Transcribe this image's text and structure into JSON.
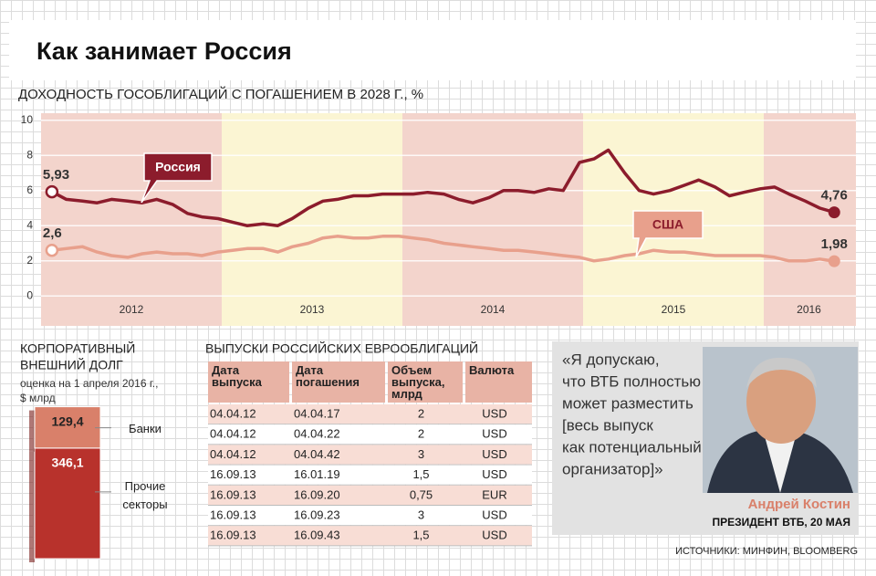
{
  "title": "Как занимает Россия",
  "chart_data": [
    {
      "type": "line",
      "title": "ДОХОДНОСТЬ ГОСОБЛИГАЦИЙ С ПОГАШЕНИЕМ В 2028 Г., %",
      "x": [
        2012.06,
        2012.14,
        2012.23,
        2012.31,
        2012.39,
        2012.48,
        2012.56,
        2012.64,
        2012.73,
        2012.81,
        2012.89,
        2012.98,
        2013.06,
        2013.14,
        2013.23,
        2013.31,
        2013.39,
        2013.48,
        2013.56,
        2013.64,
        2013.73,
        2013.81,
        2013.89,
        2013.98,
        2014.06,
        2014.14,
        2014.23,
        2014.31,
        2014.39,
        2014.48,
        2014.56,
        2014.64,
        2014.73,
        2014.81,
        2014.89,
        2014.98,
        2015.06,
        2015.14,
        2015.23,
        2015.31,
        2015.39,
        2015.48,
        2015.56,
        2015.64,
        2015.73,
        2015.81,
        2015.89,
        2015.98,
        2016.06,
        2016.14,
        2016.23,
        2016.31,
        2016.39
      ],
      "series": [
        {
          "name": "Россия",
          "color": "#8c1c2c",
          "values": [
            5.93,
            5.5,
            5.4,
            5.3,
            5.5,
            5.4,
            5.3,
            5.5,
            5.2,
            4.7,
            4.5,
            4.4,
            4.2,
            4.0,
            4.1,
            4.0,
            4.4,
            5.0,
            5.4,
            5.5,
            5.7,
            5.7,
            5.8,
            5.8,
            5.8,
            5.9,
            5.8,
            5.5,
            5.3,
            5.6,
            6.0,
            6.0,
            5.9,
            6.1,
            6.0,
            7.6,
            7.8,
            8.3,
            7.0,
            6.0,
            5.8,
            6.0,
            6.3,
            6.6,
            6.2,
            5.7,
            5.9,
            6.1,
            6.2,
            5.8,
            5.4,
            5.0,
            4.76
          ],
          "value_labels": [
            "5,93",
            null,
            null,
            null,
            null,
            null,
            null,
            null,
            null,
            null,
            null,
            null,
            null,
            null,
            null,
            null,
            null,
            null,
            null,
            null,
            null,
            null,
            null,
            null,
            null,
            null,
            null,
            null,
            null,
            null,
            null,
            null,
            null,
            null,
            null,
            null,
            null,
            null,
            null,
            null,
            null,
            null,
            null,
            null,
            null,
            null,
            null,
            null,
            null,
            null,
            null,
            null,
            "4,76"
          ]
        },
        {
          "name": "США",
          "color": "#e8a08c",
          "values": [
            2.6,
            2.7,
            2.8,
            2.5,
            2.3,
            2.2,
            2.4,
            2.5,
            2.4,
            2.4,
            2.3,
            2.5,
            2.6,
            2.7,
            2.7,
            2.5,
            2.8,
            3.0,
            3.3,
            3.4,
            3.3,
            3.3,
            3.4,
            3.4,
            3.3,
            3.2,
            3.0,
            2.9,
            2.8,
            2.7,
            2.6,
            2.6,
            2.5,
            2.4,
            2.3,
            2.2,
            2.0,
            2.1,
            2.3,
            2.4,
            2.6,
            2.5,
            2.5,
            2.4,
            2.3,
            2.3,
            2.3,
            2.3,
            2.2,
            2.0,
            2.0,
            2.1,
            1.98
          ],
          "value_labels": [
            "2,6",
            null,
            null,
            null,
            null,
            null,
            null,
            null,
            null,
            null,
            null,
            null,
            null,
            null,
            null,
            null,
            null,
            null,
            null,
            null,
            null,
            null,
            null,
            null,
            null,
            null,
            null,
            null,
            null,
            null,
            null,
            null,
            null,
            null,
            null,
            null,
            null,
            null,
            null,
            null,
            null,
            null,
            null,
            null,
            null,
            null,
            null,
            null,
            null,
            null,
            null,
            null,
            "1,98"
          ]
        }
      ],
      "xlim": [
        2012,
        2016.51
      ],
      "xticks": [
        {
          "value": 2012.5,
          "label": "2012"
        },
        {
          "value": 2013.5,
          "label": "2013"
        },
        {
          "value": 2014.5,
          "label": "2014"
        },
        {
          "value": 2015.5,
          "label": "2015"
        },
        {
          "value": 2016.25,
          "label": "2016"
        }
      ],
      "ylim": [
        -1.7,
        10.4
      ],
      "yticks": [
        0,
        2,
        4,
        6,
        8,
        10
      ],
      "grid": true
    },
    {
      "type": "stacked-bar",
      "title": [
        "КОРПОРАТИВНЫЙ",
        "ВНЕШНИЙ ДОЛГ"
      ],
      "subtitle": [
        "оценка на 1 апреля 2016 г.,",
        "$ млрд"
      ],
      "series": [
        {
          "name": "Прочие секторы",
          "color": "#b8322c",
          "values": [
            346.1
          ],
          "value_labels": [
            "346,1"
          ]
        },
        {
          "name": "Банки",
          "color": "#d9806a",
          "values": [
            129.4
          ],
          "value_labels": [
            "129,4"
          ]
        }
      ]
    }
  ],
  "table": {
    "title": "ВЫПУСКИ РОССИЙСКИХ ЕВРООБЛИГАЦИЙ",
    "header": [
      "Дата выпуска",
      "Дата погашения",
      "Объем выпуска, млрд",
      "Валюта"
    ],
    "rows": [
      [
        "04.04.12",
        "04.04.17",
        "2",
        "USD"
      ],
      [
        "04.04.12",
        "04.04.22",
        "2",
        "USD"
      ],
      [
        "04.04.12",
        "04.04.42",
        "3",
        "USD"
      ],
      [
        "16.09.13",
        "16.01.19",
        "1,5",
        "USD"
      ],
      [
        "16.09.13",
        "16.09.20",
        "0,75",
        "EUR"
      ],
      [
        "16.09.13",
        "16.09.23",
        "3",
        "USD"
      ],
      [
        "16.09.13",
        "16.09.43",
        "1,5",
        "USD"
      ]
    ]
  },
  "quote": {
    "lines": [
      "«Я допускаю,",
      "что ВТБ полностью",
      "может разместить",
      "[весь выпуск",
      "как потенциальный",
      "организатор]»"
    ],
    "name": "Андрей Костин",
    "position": "ПРЕЗИДЕНТ ВТБ, 20 МАЯ"
  },
  "source": "ИСТОЧНИКИ: МИНФИН, BLOOMBERG"
}
